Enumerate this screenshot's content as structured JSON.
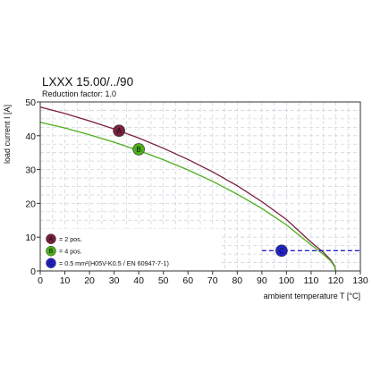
{
  "chart_data": {
    "type": "line",
    "title": "LXXX  15.00/../90",
    "subtitle": "Reduction factor: 1.0",
    "xlabel": "ambient temperature T [°C]",
    "ylabel": "load current I [A]",
    "xlim": [
      0,
      130
    ],
    "ylim": [
      0,
      50
    ],
    "xticks": [
      0,
      10,
      20,
      30,
      40,
      50,
      60,
      70,
      80,
      90,
      100,
      110,
      120,
      130
    ],
    "yticks": [
      0,
      10,
      20,
      30,
      40,
      50
    ],
    "grid": true,
    "legend_position": "bottom-left",
    "series": [
      {
        "marker": "A",
        "label": "= 2 pos.",
        "color": "#7a1f3d",
        "marker_point": [
          32,
          41.5
        ],
        "x": [
          0,
          10,
          20,
          30,
          40,
          50,
          60,
          70,
          80,
          90,
          100,
          110,
          115,
          118,
          119.5,
          120
        ],
        "y": [
          48.5,
          46.6,
          44.4,
          42.0,
          39.3,
          36.3,
          33.0,
          29.3,
          25.2,
          20.5,
          15.2,
          8.5,
          5.5,
          3.2,
          1.5,
          0
        ]
      },
      {
        "marker": "B",
        "label": "= 4 pos.",
        "color": "#4caf1a",
        "marker_point": [
          40,
          36
        ],
        "x": [
          0,
          10,
          20,
          30,
          40,
          50,
          60,
          70,
          80,
          90,
          100,
          110,
          115,
          118,
          119.5,
          120
        ],
        "y": [
          44,
          42.3,
          40.3,
          38.1,
          35.6,
          32.9,
          29.9,
          26.5,
          22.7,
          18.5,
          13.6,
          7.7,
          4.9,
          2.9,
          1.3,
          0
        ]
      },
      {
        "marker": "C",
        "label": "= 0.5 mm²(H05V-K0.5 / EN 60947-7-1)",
        "color": "#2222cc",
        "dashed": true,
        "marker_point": [
          98,
          6
        ],
        "x": [
          0,
          130
        ],
        "y": [
          6,
          6
        ]
      }
    ]
  }
}
